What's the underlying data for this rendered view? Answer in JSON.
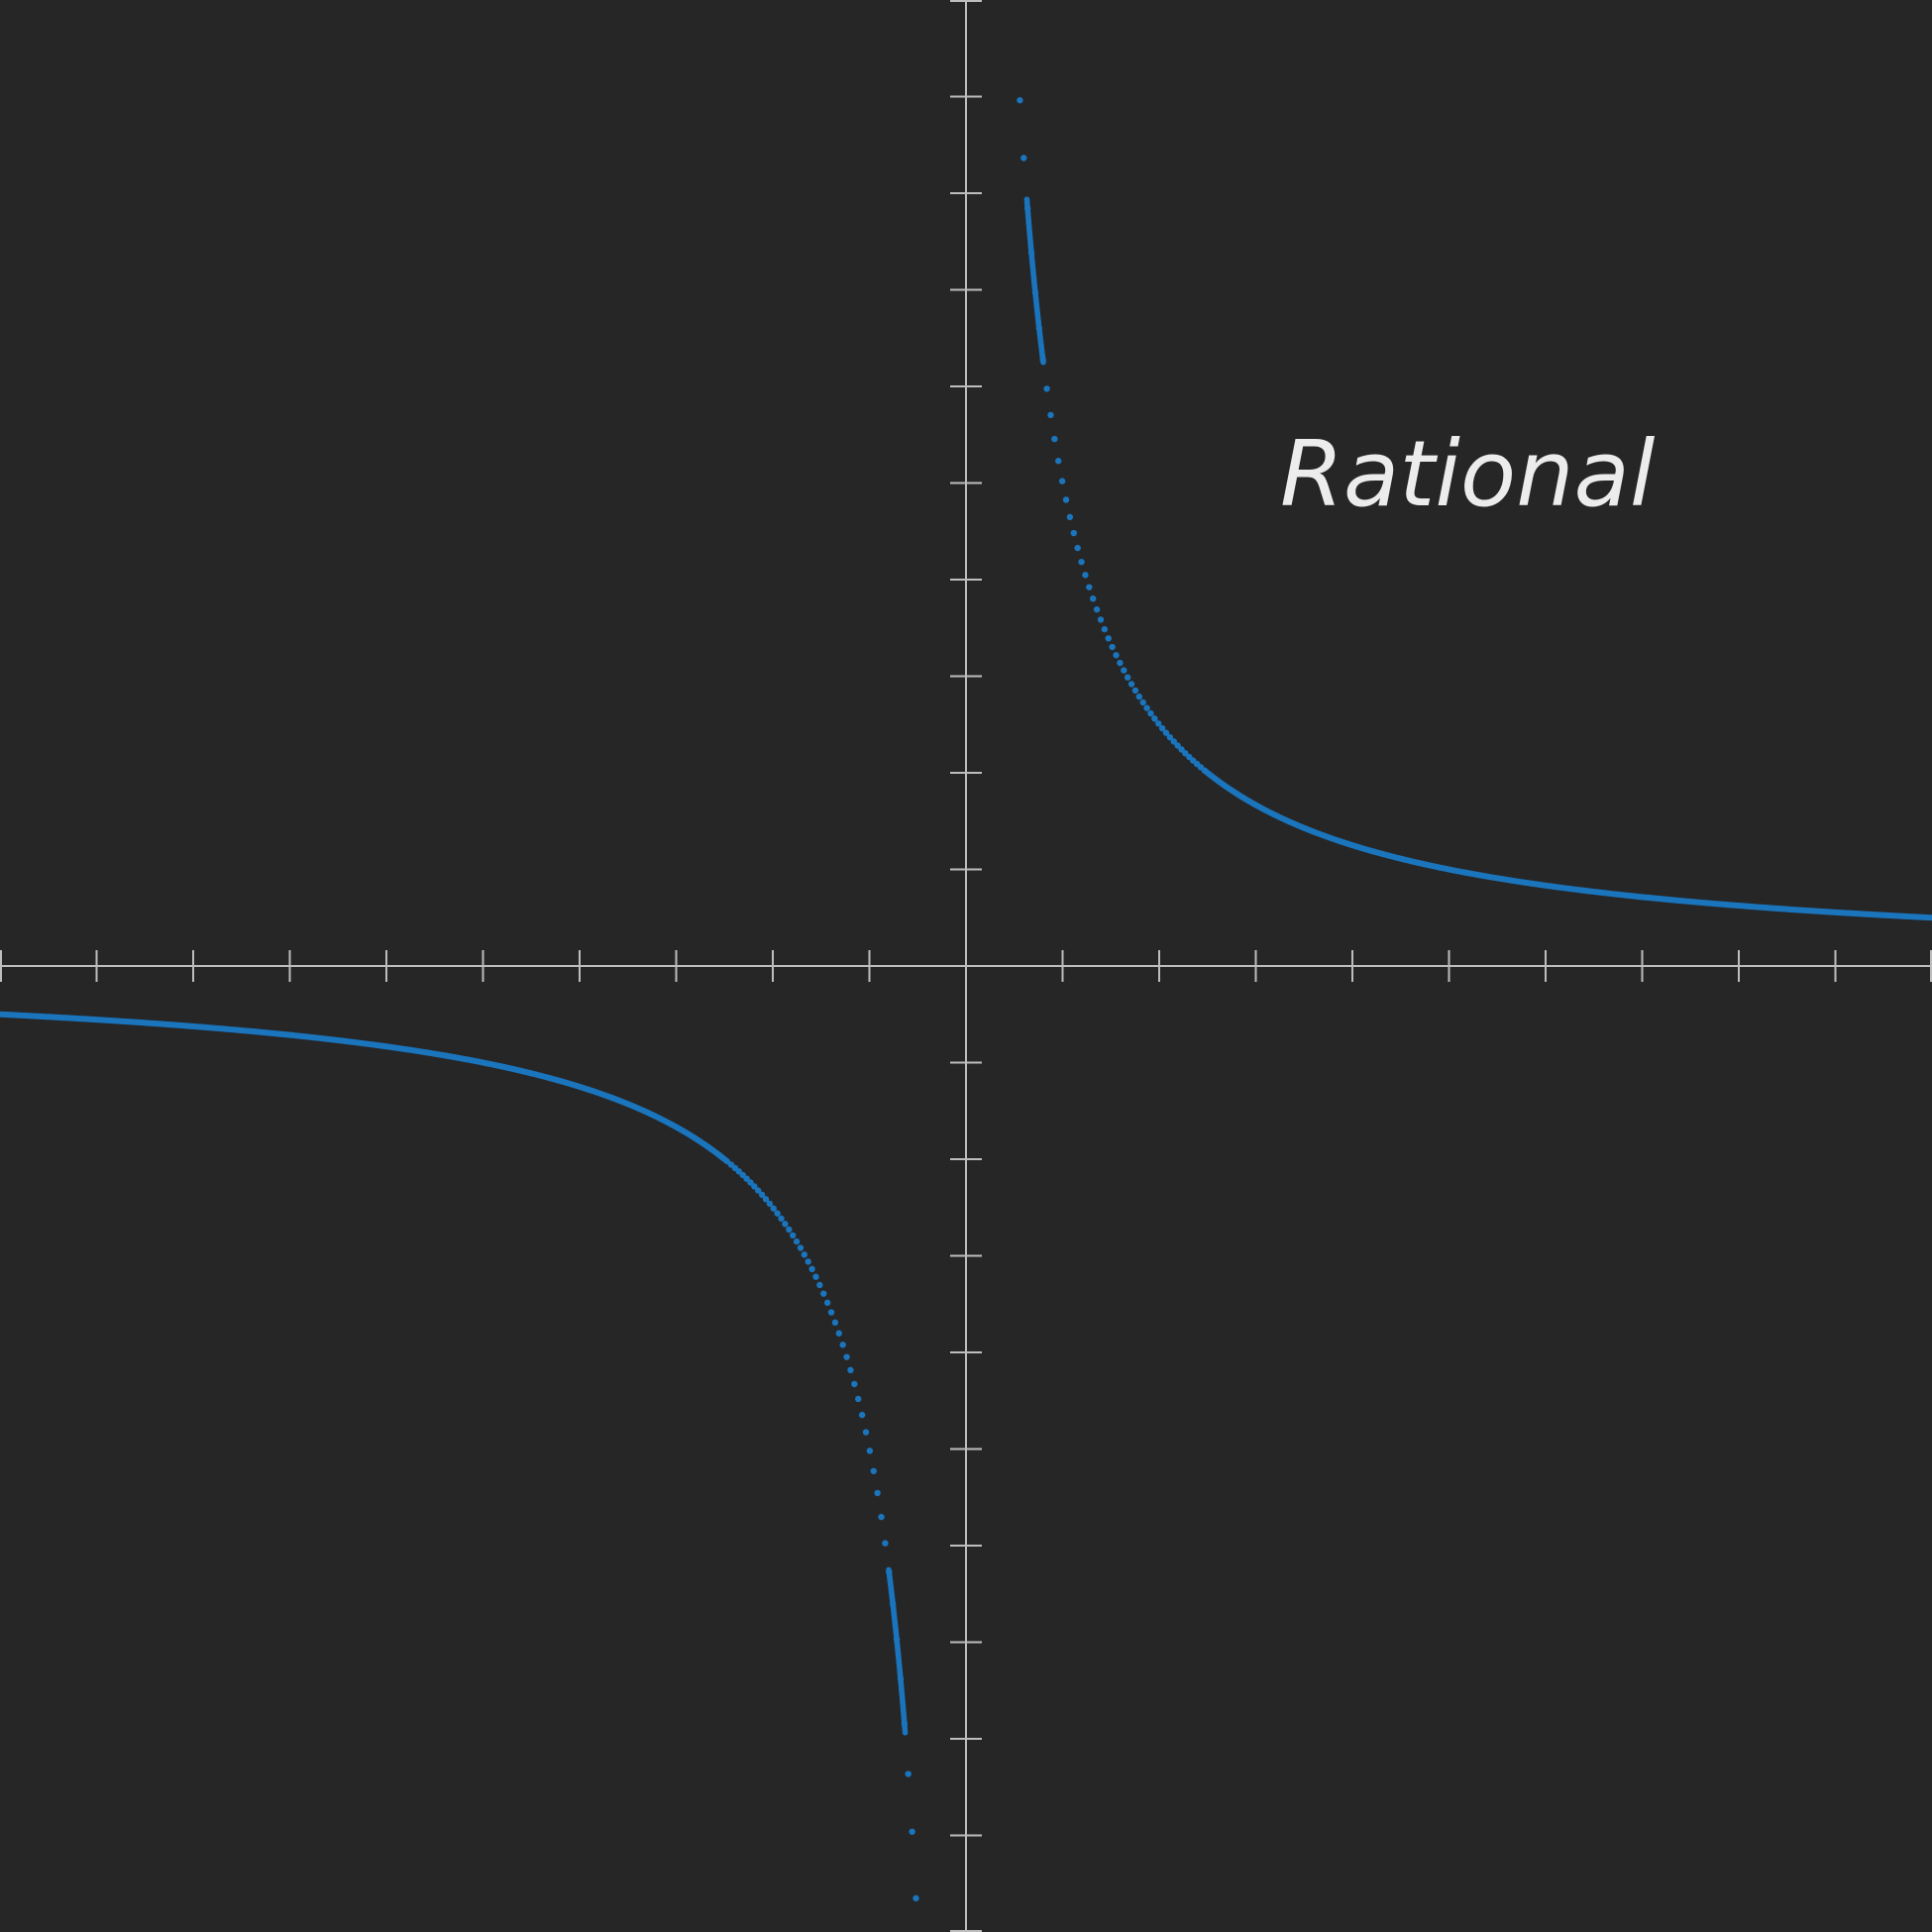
{
  "chart_data": {
    "type": "line",
    "title": "Rational",
    "xlabel": "",
    "ylabel": "",
    "xlim": [
      -10,
      10
    ],
    "ylim": [
      -10,
      10
    ],
    "x_ticks": [
      -10,
      -9,
      -8,
      -7,
      -6,
      -5,
      -4,
      -3,
      -2,
      -1,
      0,
      1,
      2,
      3,
      4,
      5,
      6,
      7,
      8,
      9,
      10
    ],
    "y_ticks": [
      -10,
      -9,
      -8,
      -7,
      -6,
      -5,
      -4,
      -3,
      -2,
      -1,
      0,
      1,
      2,
      3,
      4,
      5,
      6,
      7,
      8,
      9,
      10
    ],
    "grid": false,
    "series": [
      {
        "color": "#1a75bd",
        "function": "y = 5/x",
        "x_domain": [
          -10,
          10
        ],
        "points": [
          [
            -10,
            -0.5
          ],
          [
            -8,
            -0.625
          ],
          [
            -6,
            -0.833
          ],
          [
            -5,
            -1.0
          ],
          [
            -4,
            -1.25
          ],
          [
            -3,
            -1.667
          ],
          [
            -2,
            -2.5
          ],
          [
            -1.5,
            -3.333
          ],
          [
            -1,
            -5.0
          ],
          [
            -0.8,
            -6.25
          ],
          [
            -0.63,
            -7.94
          ],
          [
            0.63,
            7.94
          ],
          [
            0.8,
            6.25
          ],
          [
            1,
            5.0
          ],
          [
            1.5,
            3.333
          ],
          [
            2,
            2.5
          ],
          [
            3,
            1.667
          ],
          [
            4,
            1.25
          ],
          [
            5,
            1.0
          ],
          [
            6,
            0.833
          ],
          [
            8,
            0.625
          ],
          [
            10,
            0.5
          ]
        ]
      }
    ],
    "colors": {
      "background": "#262627",
      "axis": "#bdbdbd",
      "title": "#ececec"
    }
  }
}
